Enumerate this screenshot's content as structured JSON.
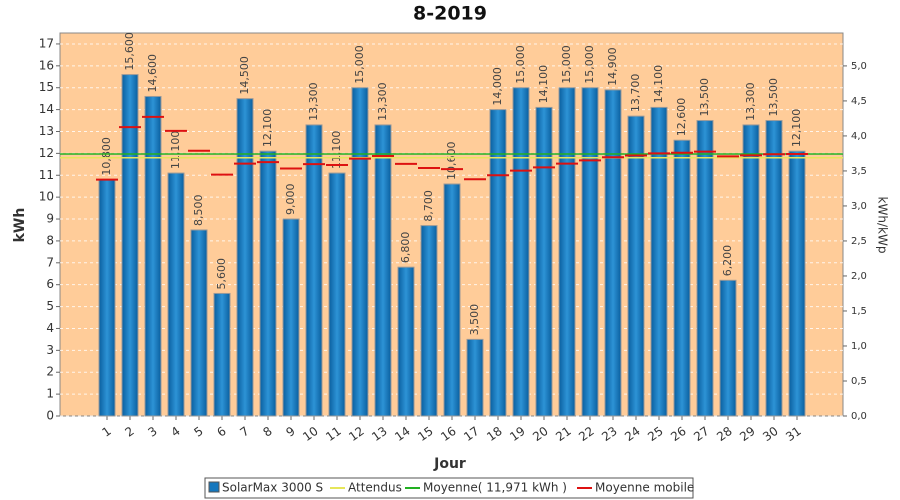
{
  "chart_data": {
    "type": "bar",
    "title": "8-2019",
    "x_label": "Jour",
    "y_label": "kWh",
    "y2_label": "kWh/kWp",
    "categories": [
      "1",
      "2",
      "3",
      "4",
      "5",
      "6",
      "7",
      "8",
      "9",
      "10",
      "11",
      "12",
      "13",
      "14",
      "15",
      "16",
      "17",
      "18",
      "19",
      "20",
      "21",
      "22",
      "23",
      "24",
      "25",
      "26",
      "27",
      "28",
      "29",
      "30",
      "31"
    ],
    "series": [
      {
        "name": "SolarMax 3000 S",
        "type": "bar",
        "color": "#1577bd",
        "values": [
          10.8,
          15.6,
          14.6,
          11.1,
          8.5,
          5.6,
          14.5,
          12.1,
          9.0,
          13.3,
          11.1,
          15.0,
          13.3,
          6.8,
          8.7,
          10.6,
          3.5,
          14.0,
          15.0,
          14.1,
          15.0,
          15.0,
          14.9,
          13.7,
          14.1,
          12.6,
          13.5,
          6.2,
          13.3,
          13.5,
          12.1
        ],
        "value_labels": [
          "10,800",
          "15,600",
          "14,600",
          "11,100",
          "8,500",
          "5,600",
          "14,500",
          "12,100",
          "9,000",
          "13,300",
          "11,100",
          "15,000",
          "13,300",
          "6,800",
          "8,700",
          "10,600",
          "3,500",
          "14,000",
          "15,000",
          "14,100",
          "15,000",
          "15,000",
          "14,900",
          "13,700",
          "14,100",
          "12,600",
          "13,500",
          "6,200",
          "13,300",
          "13,500",
          "12,100"
        ]
      },
      {
        "name": "Attendus",
        "type": "hline",
        "color": "#e6e65a",
        "value": 11.8
      },
      {
        "name": "Moyenne( 11,971 kWh )",
        "type": "hline",
        "color": "#22b022",
        "value": 11.971
      },
      {
        "name": "Moyenne mobile",
        "type": "dash",
        "color": "#dd1111",
        "values": [
          10.8,
          13.2,
          13.67,
          13.03,
          12.12,
          11.03,
          11.53,
          11.6,
          11.31,
          11.51,
          11.47,
          11.76,
          11.88,
          11.52,
          11.33,
          11.28,
          10.82,
          11.0,
          11.21,
          11.36,
          11.53,
          11.68,
          11.82,
          11.9,
          12.0,
          12.03,
          12.08,
          11.86,
          11.91,
          11.96,
          11.97
        ]
      }
    ],
    "ylim": [
      0,
      17.5
    ],
    "yticks": [
      0,
      1,
      2,
      3,
      4,
      5,
      6,
      7,
      8,
      9,
      10,
      11,
      12,
      13,
      14,
      15,
      16,
      17
    ],
    "y2lim": [
      0,
      5.47
    ],
    "y2ticks": [
      {
        "value": 0,
        "label": "0,0"
      },
      {
        "value": 0.5,
        "label": "0,5"
      },
      {
        "value": 1,
        "label": "1,0"
      },
      {
        "value": 1.5,
        "label": "1,5"
      },
      {
        "value": 2,
        "label": "2,0"
      },
      {
        "value": 2.5,
        "label": "2,5"
      },
      {
        "value": 3,
        "label": "3,0"
      },
      {
        "value": 3.5,
        "label": "3,5"
      },
      {
        "value": 4,
        "label": "4,0"
      },
      {
        "value": 4.5,
        "label": "4,5"
      },
      {
        "value": 5,
        "label": "5,0"
      }
    ],
    "grid": true,
    "legend": "bottom"
  }
}
